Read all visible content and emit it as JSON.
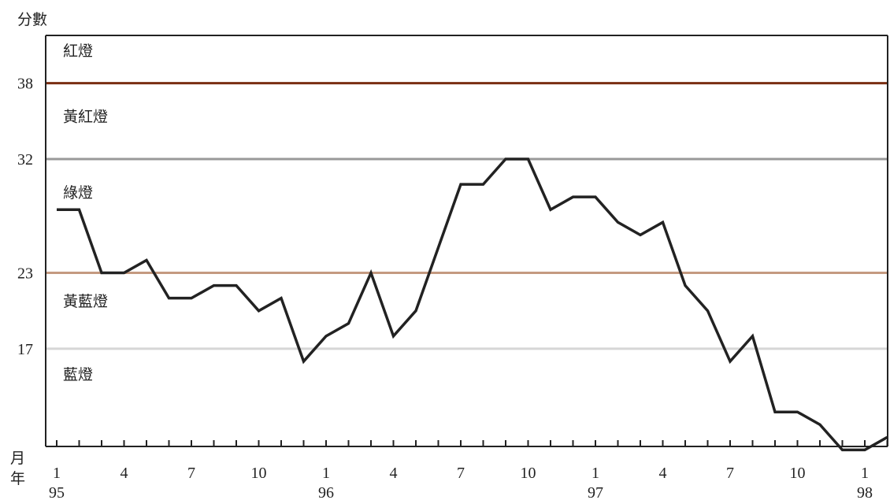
{
  "chart_data": {
    "type": "line",
    "ylabel": "分數",
    "xlabel_month": "月",
    "xlabel_year": "年",
    "ylim": [
      9,
      42
    ],
    "y_ticks": [
      "38",
      "32",
      "23",
      "17"
    ],
    "x_month_ticks": [
      "1",
      "4",
      "7",
      "10",
      "1",
      "4",
      "7",
      "10",
      "1",
      "4",
      "7",
      "10",
      "1"
    ],
    "x_year_labels": [
      "95",
      "96",
      "97",
      "98"
    ],
    "thresholds": [
      {
        "value": 38.0,
        "color": "#7a2e12"
      },
      {
        "value": 32.0,
        "color": "#999999"
      },
      {
        "value": 23.0,
        "color": "#c49a80"
      },
      {
        "value": 17.0,
        "color": "#d6d6d6"
      }
    ],
    "zones": [
      {
        "label": "紅燈",
        "anchor": 40.6
      },
      {
        "label": "黃紅燈",
        "anchor": 35.4
      },
      {
        "label": "綠燈",
        "anchor": 29.4
      },
      {
        "label": "黃藍燈",
        "anchor": 20.8
      },
      {
        "label": "藍燈",
        "anchor": 15.0
      }
    ],
    "series": [
      {
        "color": "#222222",
        "values": [
          28,
          28,
          23,
          23,
          24,
          21,
          21,
          22,
          22,
          20,
          21,
          16,
          18,
          19,
          23,
          18,
          20,
          25,
          30,
          30,
          32,
          32,
          28,
          29,
          29,
          27,
          26,
          27,
          22,
          20,
          16,
          18,
          12,
          12,
          11,
          9,
          9,
          10
        ]
      }
    ]
  }
}
